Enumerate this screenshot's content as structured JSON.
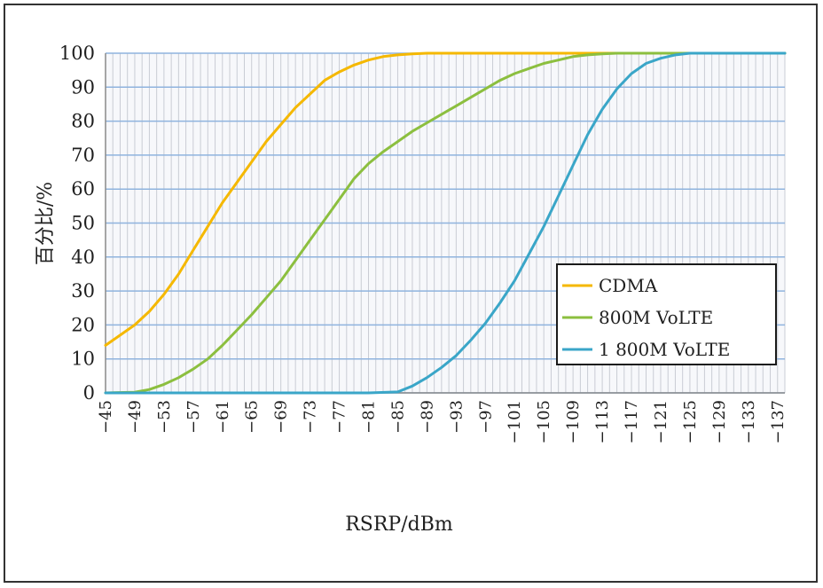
{
  "chart_data": {
    "type": "line",
    "title": "",
    "xlabel": "RSRP/dBm",
    "ylabel": "百分比/%",
    "xlim": [
      -45,
      -138
    ],
    "ylim": [
      0,
      100
    ],
    "grid": true,
    "legend_position": "right-center",
    "y_ticks": [
      "0",
      "10",
      "20",
      "30",
      "40",
      "50",
      "60",
      "70",
      "80",
      "90",
      "100"
    ],
    "x_ticks": [
      "−45",
      "−49",
      "−53",
      "−57",
      "−61",
      "−65",
      "−69",
      "−73",
      "−77",
      "−81",
      "−85",
      "−89",
      "−93",
      "−97",
      "−101",
      "−105",
      "−109",
      "−113",
      "−117",
      "−121",
      "−125",
      "−129",
      "−133",
      "−137"
    ],
    "series": [
      {
        "name": "CDMA",
        "color": "#f5b800",
        "x": [
          -45,
          -47,
          -49,
          -51,
          -53,
          -55,
          -57,
          -59,
          -61,
          -63,
          -65,
          -67,
          -69,
          -71,
          -73,
          -75,
          -77,
          -79,
          -81,
          -83,
          -85,
          -87,
          -89,
          -91,
          -93,
          -95,
          -97,
          -101,
          -105,
          -109,
          -113,
          -117,
          -121,
          -125,
          -129,
          -133,
          -138
        ],
        "values": [
          14,
          17,
          20,
          24,
          29,
          35,
          42,
          49,
          56,
          62,
          68,
          74,
          79,
          84,
          88,
          92,
          94.5,
          96.5,
          98,
          99,
          99.5,
          99.8,
          100,
          100,
          100,
          100,
          100,
          100,
          100,
          100,
          100,
          100,
          100,
          100,
          100,
          100,
          100
        ]
      },
      {
        "name": "800M VoLTE",
        "color": "#8cbf3f",
        "x": [
          -45,
          -49,
          -51,
          -53,
          -55,
          -57,
          -59,
          -61,
          -63,
          -65,
          -67,
          -69,
          -71,
          -73,
          -75,
          -77,
          -79,
          -81,
          -83,
          -85,
          -87,
          -89,
          -91,
          -93,
          -95,
          -97,
          -99,
          -101,
          -103,
          -105,
          -107,
          -109,
          -111,
          -113,
          -115,
          -117,
          -121,
          -125,
          -129,
          -133,
          -138
        ],
        "values": [
          0,
          0.2,
          1,
          2.5,
          4.5,
          7,
          10,
          14,
          18.5,
          23,
          28,
          33,
          39,
          45,
          51,
          57,
          63,
          67.5,
          71,
          74,
          77,
          79.5,
          82,
          84.5,
          87,
          89.5,
          92,
          94,
          95.5,
          97,
          98,
          99,
          99.5,
          99.8,
          100,
          100,
          100,
          100,
          100,
          100,
          100
        ]
      },
      {
        "name": "1 800M VoLTE",
        "color": "#3aa6c8",
        "x": [
          -45,
          -49,
          -53,
          -57,
          -61,
          -65,
          -69,
          -73,
          -77,
          -81,
          -85,
          -87,
          -89,
          -91,
          -93,
          -95,
          -97,
          -99,
          -101,
          -103,
          -105,
          -107,
          -109,
          -111,
          -113,
          -115,
          -117,
          -119,
          -121,
          -123,
          -125,
          -127,
          -129,
          -133,
          -138
        ],
        "values": [
          0,
          0,
          0,
          0,
          0,
          0,
          0,
          0,
          0,
          0,
          0.3,
          2,
          4.5,
          7.5,
          11,
          15.5,
          20.5,
          26.5,
          33,
          41,
          49,
          58,
          67,
          76,
          83.5,
          89.5,
          94,
          97,
          98.5,
          99.5,
          100,
          100,
          100,
          100,
          100
        ]
      }
    ]
  }
}
